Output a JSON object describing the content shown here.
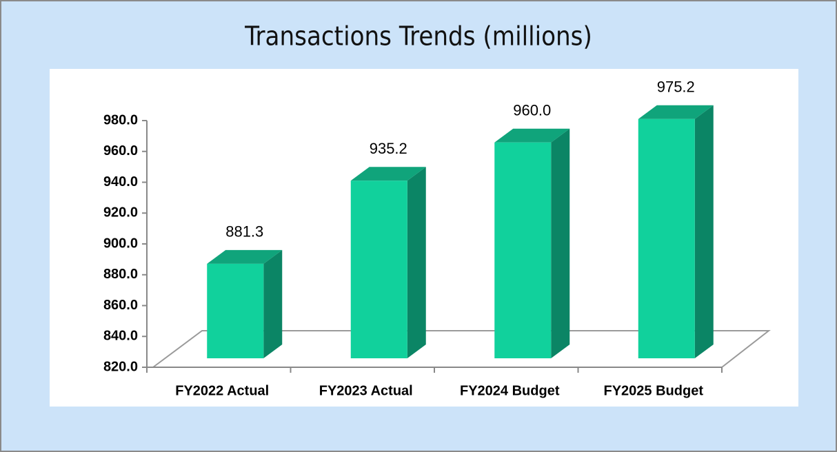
{
  "chart_data": {
    "type": "bar3d",
    "title": "Transactions Trends (millions)",
    "categories": [
      "FY2022 Actual",
      "FY2023 Actual",
      "FY2024 Budget",
      "FY2025 Budget"
    ],
    "values": [
      881.3,
      935.2,
      960.0,
      975.2
    ],
    "value_labels": [
      "881.3",
      "935.2",
      "960.0",
      "975.2"
    ],
    "color": "#11d19c",
    "ylim": [
      820,
      980
    ],
    "yticks": [
      {
        "value": 820,
        "label": "820.0"
      },
      {
        "value": 840,
        "label": "840.0"
      },
      {
        "value": 860,
        "label": "860.0"
      },
      {
        "value": 880,
        "label": "880.0"
      },
      {
        "value": 900,
        "label": "900.0"
      },
      {
        "value": 920,
        "label": "920.0"
      },
      {
        "value": 940,
        "label": "940.0"
      },
      {
        "value": 960,
        "label": "960.0"
      },
      {
        "value": 980,
        "label": "980.0"
      }
    ],
    "grid": false
  }
}
